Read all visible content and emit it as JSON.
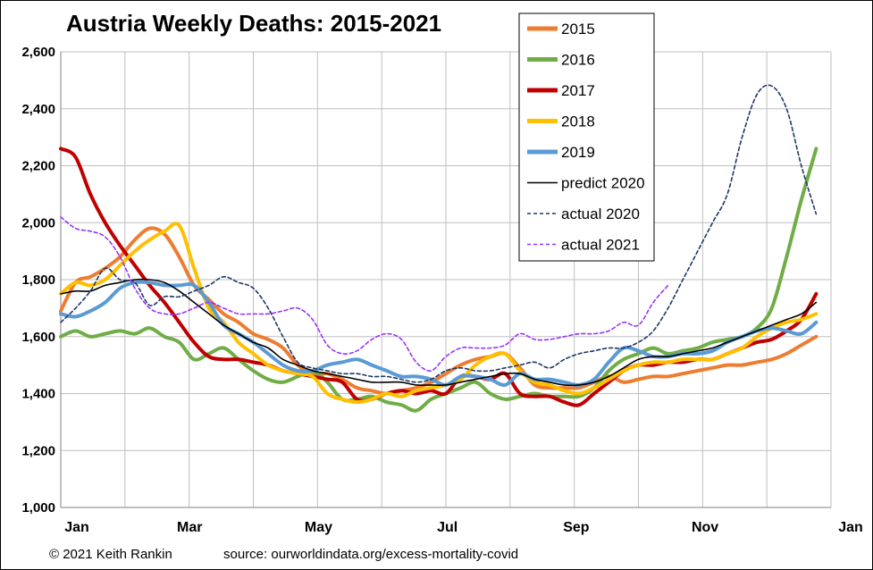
{
  "chart_data": {
    "type": "line",
    "title": "Austria Weekly Deaths: 2015-2021",
    "xlabel": "",
    "ylabel": "",
    "ylim": [
      1000,
      2600
    ],
    "yticks": [
      "1,000",
      "1,200",
      "1,400",
      "1,600",
      "1,800",
      "2,000",
      "2,200",
      "2,400",
      "2,600"
    ],
    "ytick_values": [
      1000,
      1200,
      1400,
      1600,
      1800,
      2000,
      2200,
      2400,
      2600
    ],
    "xlim": [
      1,
      53
    ],
    "xticks": [
      "Jan",
      "Mar",
      "May",
      "Jul",
      "Sep",
      "Nov",
      "Jan"
    ],
    "xtick_weeks": [
      1,
      9.7,
      18.4,
      27.1,
      35.8,
      44.5,
      53
    ],
    "grid": true,
    "legend_position": "top-right",
    "series": [
      {
        "name": "2015",
        "color": "#ED7D31",
        "style": "solid",
        "width": 4,
        "x": [
          1,
          2,
          3,
          4,
          5,
          6,
          7,
          8,
          9,
          10,
          11,
          12,
          13,
          14,
          15,
          16,
          17,
          18,
          19,
          20,
          21,
          22,
          23,
          24,
          25,
          26,
          27,
          28,
          29,
          30,
          31,
          32,
          33,
          34,
          35,
          36,
          37,
          38,
          39,
          40,
          41,
          42,
          43,
          44,
          45,
          46,
          47,
          48,
          49,
          50,
          51,
          52
        ],
        "y": [
          1690,
          1790,
          1810,
          1840,
          1880,
          1940,
          1980,
          1960,
          1880,
          1780,
          1730,
          1680,
          1650,
          1610,
          1590,
          1560,
          1500,
          1470,
          1470,
          1450,
          1420,
          1410,
          1400,
          1410,
          1420,
          1440,
          1470,
          1500,
          1520,
          1530,
          1540,
          1490,
          1430,
          1420,
          1420,
          1420,
          1440,
          1460,
          1440,
          1450,
          1460,
          1460,
          1470,
          1480,
          1490,
          1500,
          1500,
          1510,
          1520,
          1540,
          1570,
          1600
        ]
      },
      {
        "name": "2016",
        "color": "#70AD47",
        "style": "solid",
        "width": 4,
        "x": [
          1,
          2,
          3,
          4,
          5,
          6,
          7,
          8,
          9,
          10,
          11,
          12,
          13,
          14,
          15,
          16,
          17,
          18,
          19,
          20,
          21,
          22,
          23,
          24,
          25,
          26,
          27,
          28,
          29,
          30,
          31,
          32,
          33,
          34,
          35,
          36,
          37,
          38,
          39,
          40,
          41,
          42,
          43,
          44,
          45,
          46,
          47,
          48,
          49,
          50,
          51,
          52
        ],
        "y": [
          1600,
          1620,
          1600,
          1610,
          1620,
          1610,
          1630,
          1600,
          1580,
          1520,
          1540,
          1560,
          1520,
          1480,
          1450,
          1440,
          1460,
          1480,
          1440,
          1380,
          1380,
          1390,
          1370,
          1360,
          1340,
          1380,
          1400,
          1420,
          1440,
          1400,
          1380,
          1390,
          1400,
          1390,
          1390,
          1390,
          1420,
          1480,
          1520,
          1540,
          1560,
          1540,
          1550,
          1560,
          1580,
          1590,
          1600,
          1630,
          1700,
          1880,
          2080,
          2260
        ]
      },
      {
        "name": "2017",
        "color": "#C00000",
        "style": "solid",
        "width": 4,
        "x": [
          1,
          2,
          3,
          4,
          5,
          6,
          7,
          8,
          9,
          10,
          11,
          12,
          13,
          14,
          15,
          16,
          17,
          18,
          19,
          20,
          21,
          22,
          23,
          24,
          25,
          26,
          27,
          28,
          29,
          30,
          31,
          32,
          33,
          34,
          35,
          36,
          37,
          38,
          39,
          40,
          41,
          42,
          43,
          44,
          45,
          46,
          47,
          48,
          49,
          50,
          51,
          52
        ],
        "y": [
          2260,
          2230,
          2100,
          2000,
          1920,
          1850,
          1780,
          1720,
          1650,
          1580,
          1530,
          1520,
          1520,
          1510,
          1500,
          1480,
          1470,
          1460,
          1450,
          1440,
          1380,
          1380,
          1400,
          1410,
          1400,
          1410,
          1400,
          1460,
          1460,
          1450,
          1470,
          1400,
          1390,
          1390,
          1370,
          1360,
          1400,
          1440,
          1480,
          1500,
          1500,
          1510,
          1510,
          1520,
          1520,
          1540,
          1560,
          1580,
          1590,
          1620,
          1660,
          1750
        ]
      },
      {
        "name": "2018",
        "color": "#FFC000",
        "style": "solid",
        "width": 4,
        "x": [
          1,
          2,
          3,
          4,
          5,
          6,
          7,
          8,
          9,
          10,
          11,
          12,
          13,
          14,
          15,
          16,
          17,
          18,
          19,
          20,
          21,
          22,
          23,
          24,
          25,
          26,
          27,
          28,
          29,
          30,
          31,
          32,
          33,
          34,
          35,
          36,
          37,
          38,
          39,
          40,
          41,
          42,
          43,
          44,
          45,
          46,
          47,
          48,
          49,
          50,
          51,
          52
        ],
        "y": [
          1750,
          1790,
          1780,
          1800,
          1850,
          1900,
          1940,
          1970,
          1990,
          1840,
          1700,
          1650,
          1580,
          1540,
          1500,
          1480,
          1470,
          1460,
          1400,
          1380,
          1370,
          1380,
          1400,
          1390,
          1410,
          1420,
          1430,
          1450,
          1500,
          1530,
          1540,
          1480,
          1440,
          1430,
          1410,
          1400,
          1420,
          1450,
          1480,
          1500,
          1510,
          1510,
          1520,
          1520,
          1520,
          1540,
          1560,
          1600,
          1630,
          1650,
          1660,
          1680
        ]
      },
      {
        "name": "2019",
        "color": "#5B9BD5",
        "style": "solid",
        "width": 4,
        "x": [
          1,
          2,
          3,
          4,
          5,
          6,
          7,
          8,
          9,
          10,
          11,
          12,
          13,
          14,
          15,
          16,
          17,
          18,
          19,
          20,
          21,
          22,
          23,
          24,
          25,
          26,
          27,
          28,
          29,
          30,
          31,
          32,
          33,
          34,
          35,
          36,
          37,
          38,
          39,
          40,
          41,
          42,
          43,
          44,
          45,
          46,
          47,
          48,
          49,
          50,
          51,
          52
        ],
        "y": [
          1680,
          1670,
          1690,
          1720,
          1770,
          1790,
          1790,
          1780,
          1780,
          1780,
          1720,
          1640,
          1610,
          1580,
          1540,
          1500,
          1480,
          1480,
          1500,
          1510,
          1520,
          1500,
          1480,
          1460,
          1460,
          1450,
          1430,
          1460,
          1460,
          1450,
          1430,
          1470,
          1450,
          1450,
          1440,
          1430,
          1450,
          1510,
          1560,
          1550,
          1530,
          1530,
          1540,
          1540,
          1550,
          1580,
          1600,
          1620,
          1630,
          1620,
          1610,
          1650
        ]
      },
      {
        "name": "predict 2020",
        "color": "#000000",
        "style": "solid",
        "width": 1.6,
        "x": [
          1,
          2,
          3,
          4,
          5,
          6,
          7,
          8,
          9,
          10,
          11,
          12,
          13,
          14,
          15,
          16,
          17,
          18,
          19,
          20,
          21,
          22,
          23,
          24,
          25,
          26,
          27,
          28,
          29,
          30,
          31,
          32,
          33,
          34,
          35,
          36,
          37,
          38,
          39,
          40,
          41,
          42,
          43,
          44,
          45,
          46,
          47,
          48,
          49,
          50,
          51,
          52
        ],
        "y": [
          1750,
          1760,
          1760,
          1780,
          1790,
          1800,
          1800,
          1790,
          1760,
          1720,
          1680,
          1640,
          1610,
          1580,
          1560,
          1520,
          1500,
          1480,
          1470,
          1460,
          1450,
          1440,
          1440,
          1440,
          1430,
          1430,
          1430,
          1440,
          1450,
          1460,
          1470,
          1470,
          1450,
          1440,
          1430,
          1430,
          1440,
          1460,
          1490,
          1520,
          1530,
          1530,
          1540,
          1550,
          1560,
          1580,
          1600,
          1620,
          1640,
          1660,
          1680,
          1720
        ]
      },
      {
        "name": "actual 2020",
        "color": "#1F3864",
        "style": "dashed",
        "width": 1.6,
        "x": [
          1,
          2,
          3,
          4,
          5,
          6,
          7,
          8,
          9,
          10,
          11,
          12,
          13,
          14,
          15,
          16,
          17,
          18,
          19,
          20,
          21,
          22,
          23,
          24,
          25,
          26,
          27,
          28,
          29,
          30,
          31,
          32,
          33,
          34,
          35,
          36,
          37,
          38,
          39,
          40,
          41,
          42,
          43,
          44,
          45,
          46,
          47,
          48,
          49,
          50,
          51,
          52
        ],
        "y": [
          1650,
          1700,
          1760,
          1840,
          1800,
          1790,
          1710,
          1740,
          1740,
          1760,
          1780,
          1810,
          1790,
          1770,
          1700,
          1600,
          1510,
          1490,
          1480,
          1470,
          1470,
          1460,
          1460,
          1450,
          1440,
          1450,
          1480,
          1490,
          1480,
          1480,
          1490,
          1500,
          1510,
          1490,
          1520,
          1540,
          1550,
          1560,
          1560,
          1580,
          1620,
          1700,
          1800,
          1900,
          2000,
          2100,
          2300,
          2450,
          2480,
          2400,
          2200,
          2030
        ]
      },
      {
        "name": "actual 2021",
        "color": "#9933FF",
        "style": "dashed",
        "width": 1.6,
        "x": [
          1,
          2,
          3,
          4,
          5,
          6,
          7,
          8,
          9,
          10,
          11,
          12,
          13,
          14,
          15,
          16,
          17,
          18,
          19,
          20,
          21,
          22,
          23,
          24,
          25,
          26,
          27,
          28,
          29,
          30,
          31,
          32,
          33,
          34,
          35,
          36,
          37,
          38,
          39,
          40,
          41,
          42
        ],
        "y": [
          2020,
          1980,
          1970,
          1950,
          1880,
          1770,
          1700,
          1680,
          1680,
          1700,
          1720,
          1700,
          1680,
          1680,
          1680,
          1690,
          1700,
          1660,
          1570,
          1540,
          1550,
          1590,
          1610,
          1590,
          1510,
          1480,
          1530,
          1560,
          1560,
          1560,
          1570,
          1610,
          1590,
          1590,
          1600,
          1610,
          1610,
          1620,
          1650,
          1640,
          1720,
          1780
        ]
      }
    ]
  },
  "footer": {
    "copyright": "© 2021 Keith Rankin",
    "source": "source:  ourworldindata.org/excess-mortality-covid"
  }
}
